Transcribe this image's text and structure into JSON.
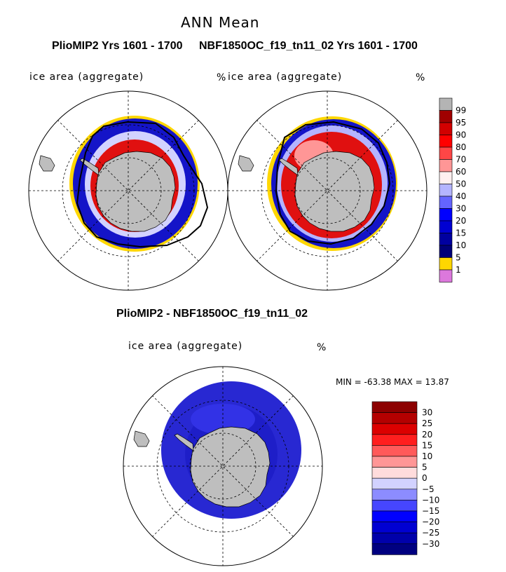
{
  "header": {
    "title": "ANN Mean",
    "left_title": "PlioMIP2  Yrs 1601 - 1700",
    "right_title": "NBF1850OC_f19_tn11_02  Yrs 1601 - 1700",
    "diff_title": "PlioMIP2 - NBF1850OC_f19_tn11_02"
  },
  "panels": {
    "left": {
      "variable": "ice area  (aggregate)",
      "units": "%"
    },
    "right": {
      "variable": "ice area  (aggregate)",
      "units": "%"
    },
    "diff": {
      "variable": "ice area  (aggregate)",
      "units": "%",
      "stats": "MIN = -63.38 MAX =   13.87"
    }
  },
  "chart_data": [
    {
      "type": "heatmap",
      "panel": "PlioMIP2  Yrs 1601 - 1700",
      "projection": "south polar stereographic",
      "variable": "ice area  (aggregate)",
      "units": "%",
      "outer_ring_color": "#1414c8"
    },
    {
      "type": "heatmap",
      "panel": "NBF1850OC_f19_tn11_02  Yrs 1601 - 1700",
      "projection": "south polar stereographic",
      "variable": "ice area  (aggregate)",
      "units": "%"
    },
    {
      "type": "heatmap",
      "panel": "PlioMIP2 - NBF1850OC_f19_tn11_02",
      "projection": "south polar stereographic",
      "variable": "ice area  (aggregate)",
      "units": "%",
      "min": -63.38,
      "max": 13.87
    }
  ],
  "legend_top": {
    "labels": [
      "99",
      "95",
      "90",
      "80",
      "70",
      "60",
      "50",
      "40",
      "30",
      "20",
      "15",
      "10",
      "5",
      "1"
    ],
    "colors": [
      "#b4b4b4",
      "#a00000",
      "#d20000",
      "#ff0000",
      "#ff4646",
      "#ff9696",
      "#fff0f0",
      "#b4b4ff",
      "#6464ff",
      "#0000ff",
      "#0000d2",
      "#0000a0",
      "#000078",
      "#ffd700",
      "#dc78dc"
    ]
  },
  "legend_diff": {
    "labels": [
      "30",
      "25",
      "20",
      "15",
      "10",
      "5",
      "0",
      "−5",
      "−10",
      "−15",
      "−20",
      "−25",
      "−30"
    ],
    "colors": [
      "#8c0000",
      "#b40000",
      "#dc0000",
      "#ff1e1e",
      "#ff5a5a",
      "#ff9696",
      "#ffdcdc",
      "#d2d2ff",
      "#8c8cff",
      "#4646ff",
      "#0000ff",
      "#0000d2",
      "#0000aa",
      "#000080"
    ]
  },
  "colors": {
    "land": "#bebebe",
    "high_ice": "#e01010",
    "mid_ice": "#1414c8",
    "low_ice": "#ffd700",
    "diff_neg": "#2828d2",
    "contour": "#000000"
  }
}
